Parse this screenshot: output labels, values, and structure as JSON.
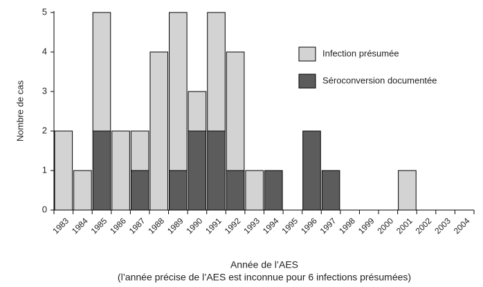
{
  "chart_data": {
    "type": "stacked_bar",
    "xlabel": "Année de l’AES",
    "note": "(l’année précise de l’AES est inconnue pour 6 infections présumées)",
    "ylabel": "Nombre de cas",
    "categories": [
      "1983",
      "1984",
      "1985",
      "1986",
      "1987",
      "1988",
      "1989",
      "1990",
      "1991",
      "1992",
      "1993",
      "1994",
      "1995",
      "1996",
      "1997",
      "1998",
      "1999",
      "2000",
      "2001",
      "2002",
      "2003",
      "2004"
    ],
    "series": [
      {
        "name": "Infection présumée",
        "color": "#d3d3d3",
        "values": [
          2,
          1,
          3,
          2,
          1,
          4,
          4,
          1,
          3,
          3,
          1,
          0,
          0,
          0,
          0,
          0,
          0,
          0,
          1,
          0,
          0,
          0
        ]
      },
      {
        "name": "Séroconversion documentée",
        "color": "#5c5c5c",
        "values": [
          0,
          0,
          2,
          0,
          1,
          0,
          1,
          2,
          2,
          1,
          0,
          1,
          0,
          2,
          1,
          0,
          0,
          0,
          0,
          0,
          0,
          0
        ]
      }
    ],
    "ylim": [
      0,
      5
    ],
    "yticks": [
      0,
      1,
      2,
      3,
      4,
      5
    ]
  }
}
